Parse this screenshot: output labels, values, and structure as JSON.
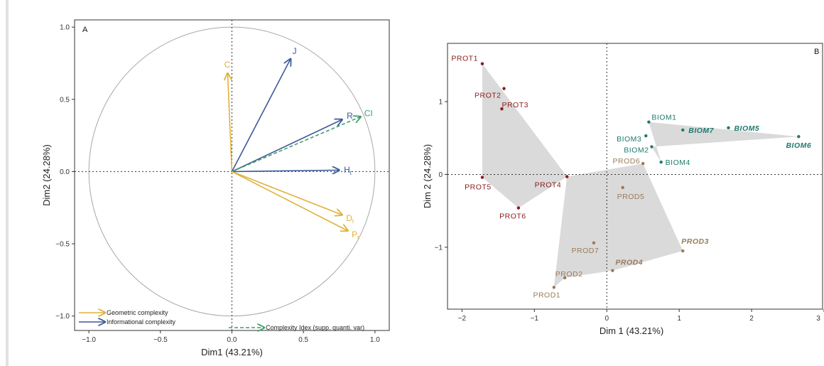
{
  "colors": {
    "geometric": "#e0b23a",
    "informational": "#3d5a99",
    "supplementary": "#3f9e6a",
    "prot": "#8b1a1a",
    "biom": "#1e7a6e",
    "prod": "#9a7a5a",
    "hull": "#d3d3d3"
  },
  "chart_data": [
    {
      "type": "scatter",
      "subtype": "correlation-circle",
      "panel_label": "A",
      "xlabel": "Dim1 (43.21%)",
      "ylabel": "Dim2 (24.28%)",
      "xlim": [
        -1.1,
        1.1
      ],
      "ylim": [
        -1.1,
        1.05
      ],
      "xticks": [
        -1.0,
        -0.5,
        0.0,
        0.5,
        1.0
      ],
      "xtick_labels": [
        "−1.0",
        "−0.5",
        "0.0",
        "0.5",
        "1.0"
      ],
      "yticks": [
        -1.0,
        -0.5,
        0.0,
        0.5,
        1.0
      ],
      "ytick_labels": [
        "−1.0",
        "−0.5",
        "0.0",
        "0.5",
        "1.0"
      ],
      "unit_circle": true,
      "vectors": [
        {
          "label": "C",
          "sub": "",
          "x": -0.03,
          "y": 0.68,
          "group": "geometric"
        },
        {
          "label": "J",
          "sub": "",
          "x": 0.41,
          "y": 0.78,
          "group": "informational"
        },
        {
          "label": "R",
          "sub": "",
          "x": 0.77,
          "y": 0.36,
          "group": "informational"
        },
        {
          "label": "CI",
          "sub": "",
          "x": 0.9,
          "y": 0.38,
          "group": "supplementary"
        },
        {
          "label": "H",
          "sub": "t",
          "x": 0.75,
          "y": 0.01,
          "group": "informational"
        },
        {
          "label": "D",
          "sub": "t",
          "x": 0.77,
          "y": -0.3,
          "group": "geometric"
        },
        {
          "label": "P",
          "sub": "t",
          "x": 0.81,
          "y": -0.41,
          "group": "geometric"
        }
      ],
      "legend": [
        {
          "label": "Geometric complexity",
          "group": "geometric"
        },
        {
          "label": "Informational complexity",
          "group": "informational"
        },
        {
          "label": "Complexity Idex (supp. quanti. var)",
          "group": "supplementary"
        }
      ]
    },
    {
      "type": "scatter",
      "subtype": "pca-individuals",
      "panel_label": "B",
      "xlabel": "Dim 1 (43.21%)",
      "ylabel": "Dim 2 (24.28%)",
      "xlim": [
        -2.2,
        3.0
      ],
      "ylim": [
        -1.85,
        1.8
      ],
      "xticks": [
        -2,
        -1,
        0,
        1,
        2,
        3
      ],
      "xtick_labels": [
        "−2",
        "−1",
        "0",
        "1",
        "2",
        "3"
      ],
      "yticks": [
        -1,
        0,
        1
      ],
      "ytick_labels": [
        "−1",
        "0",
        "1"
      ],
      "points": [
        {
          "label": "PROT1",
          "x": -1.72,
          "y": 1.52,
          "group": "prot",
          "bold": false
        },
        {
          "label": "PROT2",
          "x": -1.42,
          "y": 1.18,
          "group": "prot",
          "bold": false
        },
        {
          "label": "PROT3",
          "x": -1.45,
          "y": 0.9,
          "group": "prot",
          "bold": false
        },
        {
          "label": "PROT4",
          "x": -0.55,
          "y": -0.03,
          "group": "prot",
          "bold": false
        },
        {
          "label": "PROT5",
          "x": -1.72,
          "y": -0.04,
          "group": "prot",
          "bold": false
        },
        {
          "label": "PROT6",
          "x": -1.22,
          "y": -0.46,
          "group": "prot",
          "bold": false
        },
        {
          "label": "BIOM1",
          "x": 0.58,
          "y": 0.72,
          "group": "biom",
          "bold": false
        },
        {
          "label": "BIOM2",
          "x": 0.62,
          "y": 0.38,
          "group": "biom",
          "bold": false
        },
        {
          "label": "BIOM3",
          "x": 0.54,
          "y": 0.53,
          "group": "biom",
          "bold": false
        },
        {
          "label": "BIOM4",
          "x": 0.75,
          "y": 0.17,
          "group": "biom",
          "bold": false
        },
        {
          "label": "BIOM5",
          "x": 1.68,
          "y": 0.64,
          "group": "biom",
          "bold": true
        },
        {
          "label": "BIOM6",
          "x": 2.65,
          "y": 0.52,
          "group": "biom",
          "bold": true
        },
        {
          "label": "BIOM7",
          "x": 1.05,
          "y": 0.61,
          "group": "biom",
          "bold": true
        },
        {
          "label": "PROD1",
          "x": -0.73,
          "y": -1.55,
          "group": "prod",
          "bold": false
        },
        {
          "label": "PROD2",
          "x": -0.58,
          "y": -1.42,
          "group": "prod",
          "bold": false
        },
        {
          "label": "PROD3",
          "x": 1.05,
          "y": -1.05,
          "group": "prod",
          "bold": true
        },
        {
          "label": "PROD4",
          "x": 0.08,
          "y": -1.32,
          "group": "prod",
          "bold": true
        },
        {
          "label": "PROD5",
          "x": 0.22,
          "y": -0.18,
          "group": "prod",
          "bold": false
        },
        {
          "label": "PROD6",
          "x": 0.5,
          "y": 0.15,
          "group": "prod",
          "bold": false
        },
        {
          "label": "PROD7",
          "x": -0.18,
          "y": -0.94,
          "group": "prod",
          "bold": false
        }
      ],
      "hulls": {
        "prot": [
          "PROT1",
          "PROT4",
          "PROT6",
          "PROT5"
        ],
        "biom": [
          "BIOM1",
          "BIOM6",
          "BIOM2",
          "BIOM4"
        ],
        "prod": [
          "PROD6",
          "PROD3",
          "PROD4",
          "PROD2",
          "PROD1",
          "PROT4"
        ]
      }
    }
  ]
}
